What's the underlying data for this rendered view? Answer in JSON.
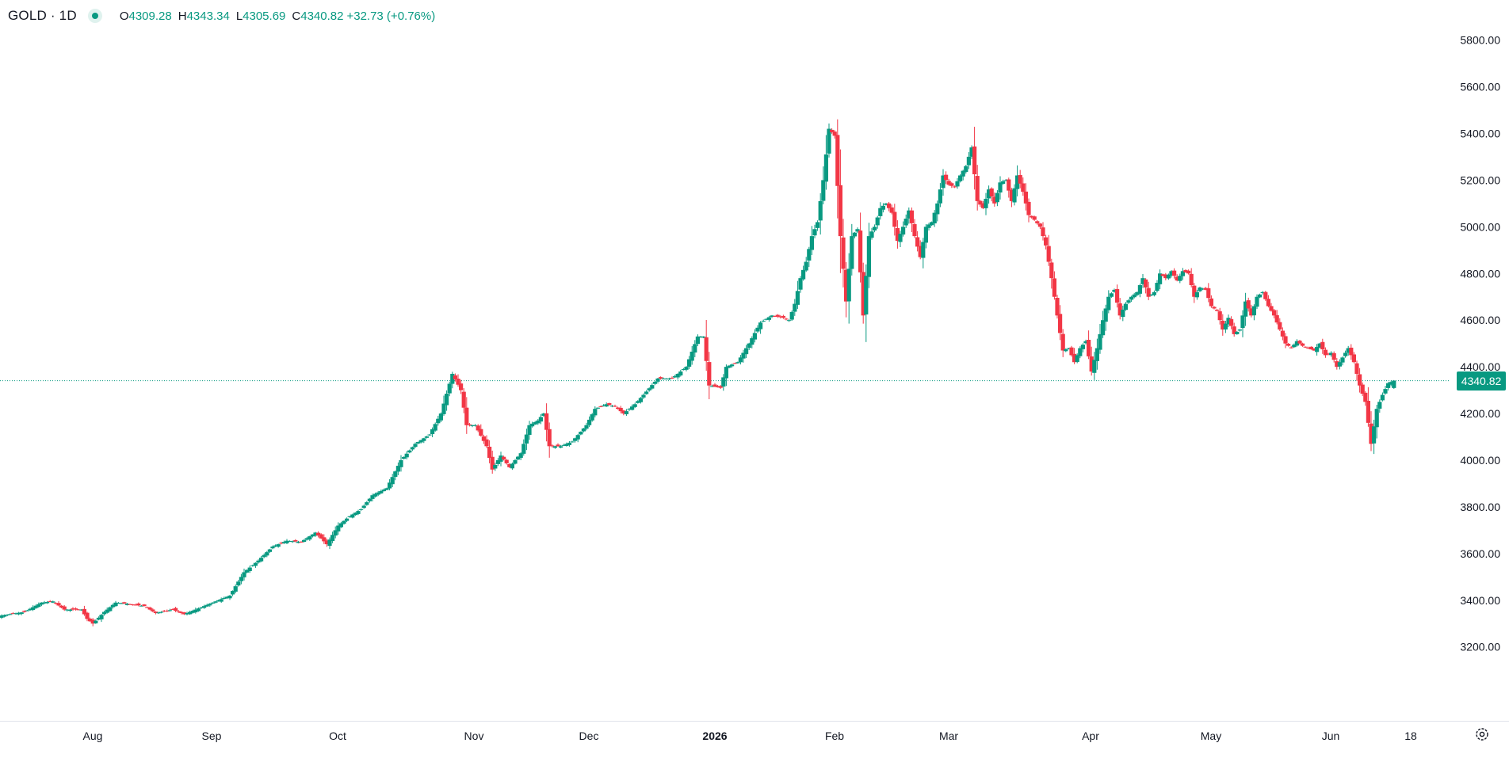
{
  "legend": {
    "symbol": "GOLD",
    "interval": "1D",
    "symbol_text": "GOLD · 1D",
    "o_label": "O",
    "o_value": "4309.28",
    "h_label": "H",
    "h_value": "4343.34",
    "l_label": "L",
    "l_value": "4305.69",
    "c_label": "C",
    "c_value": "4340.82",
    "change": "+32.73 (+0.76%)"
  },
  "colors": {
    "up": "#089981",
    "down": "#f23645",
    "axis_text": "#131722",
    "last_line": "#089981"
  },
  "settings_icon": "gear-icon",
  "chart_data": {
    "type": "candlestick",
    "symbol": "GOLD",
    "interval": "1D",
    "title": "",
    "xlabel": "",
    "ylabel": "",
    "ylim": [
      3060,
      5880
    ],
    "y_ticks": [
      "3200.00",
      "3400.00",
      "3600.00",
      "3800.00",
      "4000.00",
      "4200.00",
      "4400.00",
      "4600.00",
      "4800.00",
      "5000.00",
      "5200.00",
      "5400.00",
      "5600.00",
      "5800.00"
    ],
    "x_ticks": [
      {
        "label": "Aug",
        "bold": false
      },
      {
        "label": "Sep",
        "bold": false
      },
      {
        "label": "Oct",
        "bold": false
      },
      {
        "label": "Nov",
        "bold": false
      },
      {
        "label": "Dec",
        "bold": false
      },
      {
        "label": "2026",
        "bold": true
      },
      {
        "label": "Feb",
        "bold": false
      },
      {
        "label": "Mar",
        "bold": false
      },
      {
        "label": "Apr",
        "bold": false
      },
      {
        "label": "May",
        "bold": false
      },
      {
        "label": "Jun",
        "bold": false
      },
      {
        "label": "18",
        "bold": false
      }
    ],
    "last_price": "4340.82",
    "grid": false,
    "close_anchors": [
      [
        0,
        3335
      ],
      [
        8,
        3350
      ],
      [
        14,
        3390
      ],
      [
        18,
        3395
      ],
      [
        22,
        3360
      ],
      [
        28,
        3360
      ],
      [
        30,
        3320
      ],
      [
        32,
        3300
      ],
      [
        36,
        3350
      ],
      [
        40,
        3390
      ],
      [
        44,
        3385
      ],
      [
        50,
        3375
      ],
      [
        54,
        3345
      ],
      [
        60,
        3360
      ],
      [
        64,
        3340
      ],
      [
        68,
        3360
      ],
      [
        74,
        3390
      ],
      [
        80,
        3420
      ],
      [
        85,
        3520
      ],
      [
        90,
        3570
      ],
      [
        95,
        3630
      ],
      [
        100,
        3655
      ],
      [
        105,
        3650
      ],
      [
        110,
        3690
      ],
      [
        114,
        3640
      ],
      [
        118,
        3720
      ],
      [
        122,
        3760
      ],
      [
        126,
        3790
      ],
      [
        130,
        3850
      ],
      [
        135,
        3880
      ],
      [
        140,
        4000
      ],
      [
        145,
        4070
      ],
      [
        150,
        4110
      ],
      [
        154,
        4200
      ],
      [
        158,
        4370
      ],
      [
        161,
        4300
      ],
      [
        163,
        4150
      ],
      [
        166,
        4150
      ],
      [
        170,
        4060
      ],
      [
        172,
        3960
      ],
      [
        175,
        4020
      ],
      [
        178,
        3970
      ],
      [
        182,
        4030
      ],
      [
        185,
        4150
      ],
      [
        188,
        4170
      ],
      [
        190,
        4200
      ],
      [
        192,
        4060
      ],
      [
        196,
        4060
      ],
      [
        200,
        4080
      ],
      [
        205,
        4150
      ],
      [
        208,
        4220
      ],
      [
        212,
        4240
      ],
      [
        215,
        4230
      ],
      [
        218,
        4200
      ],
      [
        222,
        4240
      ],
      [
        225,
        4280
      ],
      [
        230,
        4350
      ],
      [
        235,
        4350
      ],
      [
        240,
        4400
      ],
      [
        244,
        4530
      ],
      [
        246,
        4530
      ],
      [
        248,
        4320
      ],
      [
        252,
        4310
      ],
      [
        254,
        4400
      ],
      [
        258,
        4420
      ],
      [
        262,
        4500
      ],
      [
        266,
        4590
      ],
      [
        270,
        4620
      ],
      [
        274,
        4610
      ],
      [
        276,
        4600
      ],
      [
        278,
        4670
      ],
      [
        280,
        4780
      ],
      [
        282,
        4850
      ],
      [
        284,
        4960
      ],
      [
        286,
        5020
      ],
      [
        288,
        5200
      ],
      [
        290,
        5420
      ],
      [
        292,
        5390
      ],
      [
        294,
        4960
      ],
      [
        296,
        4680
      ],
      [
        298,
        4960
      ],
      [
        300,
        4990
      ],
      [
        302,
        4620
      ],
      [
        304,
        4960
      ],
      [
        306,
        5000
      ],
      [
        308,
        5080
      ],
      [
        310,
        5100
      ],
      [
        312,
        5060
      ],
      [
        314,
        4940
      ],
      [
        316,
        5000
      ],
      [
        318,
        5070
      ],
      [
        320,
        4960
      ],
      [
        322,
        4870
      ],
      [
        324,
        5000
      ],
      [
        326,
        5020
      ],
      [
        328,
        5100
      ],
      [
        330,
        5220
      ],
      [
        332,
        5180
      ],
      [
        334,
        5170
      ],
      [
        336,
        5220
      ],
      [
        338,
        5260
      ],
      [
        340,
        5340
      ],
      [
        342,
        5110
      ],
      [
        344,
        5080
      ],
      [
        346,
        5160
      ],
      [
        348,
        5100
      ],
      [
        350,
        5190
      ],
      [
        352,
        5200
      ],
      [
        354,
        5110
      ],
      [
        356,
        5220
      ],
      [
        358,
        5150
      ],
      [
        360,
        5050
      ],
      [
        362,
        5030
      ],
      [
        364,
        5000
      ],
      [
        366,
        4920
      ],
      [
        368,
        4780
      ],
      [
        370,
        4620
      ],
      [
        372,
        4470
      ],
      [
        374,
        4480
      ],
      [
        376,
        4420
      ],
      [
        378,
        4480
      ],
      [
        380,
        4510
      ],
      [
        382,
        4380
      ],
      [
        384,
        4480
      ],
      [
        386,
        4600
      ],
      [
        388,
        4700
      ],
      [
        390,
        4730
      ],
      [
        392,
        4620
      ],
      [
        394,
        4670
      ],
      [
        396,
        4700
      ],
      [
        398,
        4720
      ],
      [
        400,
        4780
      ],
      [
        402,
        4700
      ],
      [
        404,
        4720
      ],
      [
        406,
        4800
      ],
      [
        408,
        4780
      ],
      [
        410,
        4810
      ],
      [
        412,
        4770
      ],
      [
        414,
        4810
      ],
      [
        416,
        4800
      ],
      [
        418,
        4700
      ],
      [
        420,
        4740
      ],
      [
        422,
        4730
      ],
      [
        424,
        4660
      ],
      [
        426,
        4640
      ],
      [
        428,
        4560
      ],
      [
        430,
        4610
      ],
      [
        432,
        4540
      ],
      [
        434,
        4560
      ],
      [
        436,
        4680
      ],
      [
        438,
        4620
      ],
      [
        440,
        4700
      ],
      [
        442,
        4720
      ],
      [
        444,
        4660
      ],
      [
        446,
        4620
      ],
      [
        448,
        4560
      ],
      [
        450,
        4500
      ],
      [
        452,
        4480
      ],
      [
        454,
        4510
      ],
      [
        456,
        4490
      ],
      [
        458,
        4480
      ],
      [
        460,
        4470
      ],
      [
        462,
        4500
      ],
      [
        464,
        4450
      ],
      [
        466,
        4460
      ],
      [
        468,
        4400
      ],
      [
        470,
        4440
      ],
      [
        472,
        4480
      ],
      [
        474,
        4420
      ],
      [
        476,
        4320
      ],
      [
        478,
        4250
      ],
      [
        480,
        4070
      ],
      [
        482,
        4220
      ],
      [
        484,
        4280
      ],
      [
        486,
        4330
      ],
      [
        488,
        4340.82
      ]
    ]
  }
}
